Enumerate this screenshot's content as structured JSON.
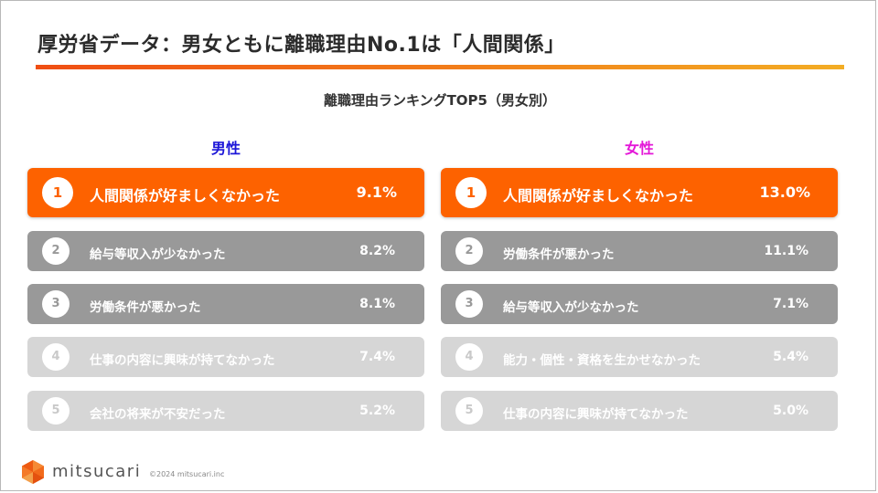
{
  "title": "厚労省データ：男女ともに離職理由No.1は「人間関係」",
  "subtitle": "離職理由ランキングTOP5（男女別）",
  "colors": {
    "accent": "#fd6200",
    "male_heading": "#1c16d8",
    "female_heading": "#e417d8",
    "rank_dark": "#999999",
    "rank_light": "#d6d6d6"
  },
  "male": {
    "heading": "男性",
    "items": [
      {
        "rank": "1",
        "label": "人間関係が好ましくなかった",
        "pct": "9.1%"
      },
      {
        "rank": "2",
        "label": "給与等収入が少なかった",
        "pct": "8.2%"
      },
      {
        "rank": "3",
        "label": "労働条件が悪かった",
        "pct": "8.1%"
      },
      {
        "rank": "4",
        "label": "仕事の内容に興味が持てなかった",
        "pct": "7.4%"
      },
      {
        "rank": "5",
        "label": "会社の将来が不安だった",
        "pct": "5.2%"
      }
    ]
  },
  "female": {
    "heading": "女性",
    "items": [
      {
        "rank": "1",
        "label": "人間関係が好ましくなかった",
        "pct": "13.0%"
      },
      {
        "rank": "2",
        "label": "労働条件が悪かった",
        "pct": "11.1%"
      },
      {
        "rank": "3",
        "label": "給与等収入が少なかった",
        "pct": "7.1%"
      },
      {
        "rank": "4",
        "label": "能力・個性・資格を生かせなかった",
        "pct": "5.4%"
      },
      {
        "rank": "5",
        "label": "仕事の内容に興味が持てなかった",
        "pct": "5.0%"
      }
    ]
  },
  "footer": {
    "logo_icon": "mitsucari-hexagon-logo-icon",
    "brand": "mitsucari",
    "copyright": "©2024 mitsucari.inc"
  }
}
